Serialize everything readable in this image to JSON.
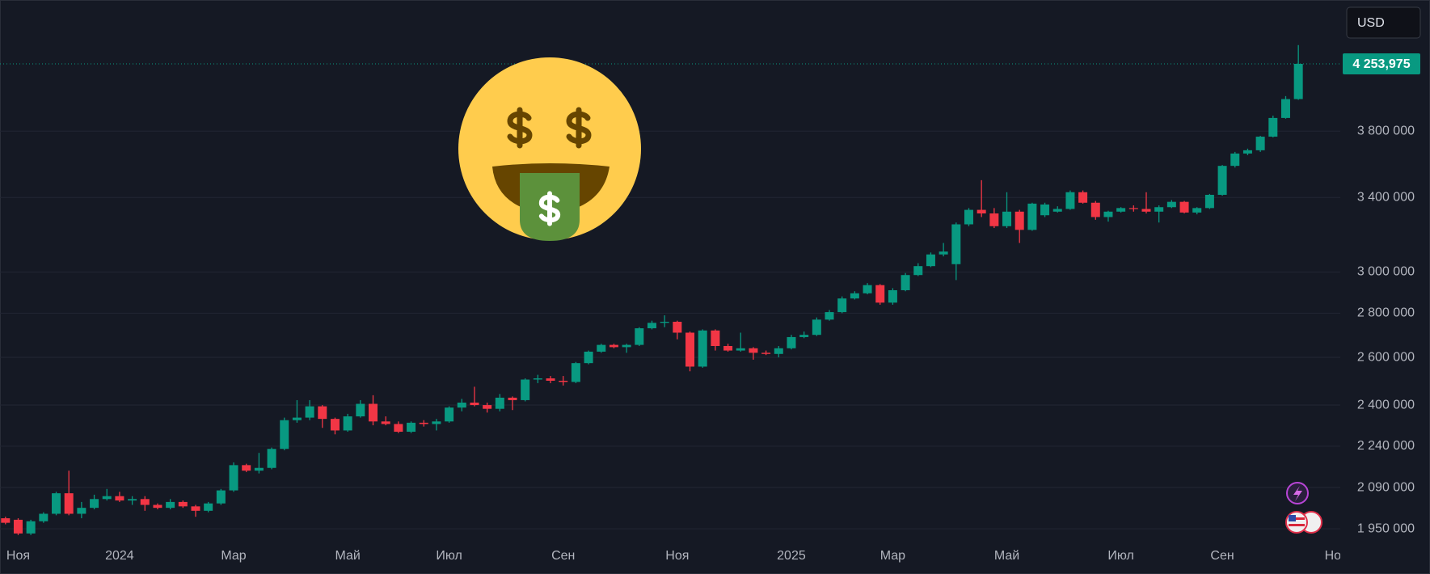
{
  "chart_data": {
    "type": "candlestick",
    "currency": "USD",
    "log_scale": true,
    "grid": true,
    "up_color": "#089981",
    "down_color": "#f23645",
    "ylim": [
      1906000,
      4735000
    ],
    "yticks": [
      {
        "value": 1950000,
        "label": "1 950 000"
      },
      {
        "value": 2090000,
        "label": "2 090 000"
      },
      {
        "value": 2240000,
        "label": "2 240 000"
      },
      {
        "value": 2400000,
        "label": "2 400 000"
      },
      {
        "value": 2600000,
        "label": "2 600 000"
      },
      {
        "value": 2800000,
        "label": "2 800 000"
      },
      {
        "value": 3000000,
        "label": "3 000 000"
      },
      {
        "value": 3400000,
        "label": "3 400 000"
      },
      {
        "value": 3800000,
        "label": "3 800 000"
      }
    ],
    "price_line": {
      "value": 4253975,
      "label": "4 253,975",
      "color": "#089981"
    },
    "categories": [
      null,
      "Ноя",
      null,
      null,
      null,
      null,
      null,
      null,
      null,
      "2024",
      null,
      null,
      null,
      null,
      null,
      null,
      null,
      null,
      "Мар",
      null,
      null,
      null,
      null,
      null,
      null,
      null,
      null,
      "Май",
      null,
      null,
      null,
      null,
      null,
      null,
      null,
      "Июл",
      null,
      null,
      null,
      null,
      null,
      null,
      null,
      null,
      "Сен",
      null,
      null,
      null,
      null,
      null,
      null,
      null,
      null,
      "Ноя",
      null,
      null,
      null,
      null,
      null,
      null,
      null,
      null,
      "2025",
      null,
      null,
      null,
      null,
      null,
      null,
      null,
      "Мар",
      null,
      null,
      null,
      null,
      null,
      null,
      null,
      null,
      "Май",
      null,
      null,
      null,
      null,
      null,
      null,
      null,
      null,
      "Июл",
      null,
      null,
      null,
      null,
      null,
      null,
      null,
      "Сен",
      null,
      null,
      null,
      null,
      null,
      null,
      null,
      null,
      "Ноя"
    ],
    "open": [
      1985000,
      1980000,
      1935000,
      1975000,
      2000000,
      2070000,
      2000000,
      2020000,
      2050000,
      2060000,
      2045000,
      2050000,
      2030000,
      2020000,
      2040000,
      2025000,
      2010000,
      2035000,
      2080000,
      2170000,
      2150000,
      2160000,
      2230000,
      2340000,
      2350000,
      2395000,
      2345000,
      2300000,
      2355000,
      2405000,
      2335000,
      2325000,
      2295000,
      2330000,
      2325000,
      2335000,
      2390000,
      2410000,
      2400000,
      2385000,
      2430000,
      2420000,
      2505000,
      2510000,
      2500000,
      2495000,
      2575000,
      2625000,
      2655000,
      2645000,
      2655000,
      2730000,
      2755000,
      2760000,
      2710000,
      2560000,
      2720000,
      2650000,
      2630000,
      2640000,
      2620000,
      2615000,
      2640000,
      2690000,
      2700000,
      2770000,
      2805000,
      2870000,
      2895000,
      2935000,
      2850000,
      2910000,
      2985000,
      3030000,
      3090000,
      3040000,
      3250000,
      3330000,
      3310000,
      3240000,
      3320000,
      3220000,
      3300000,
      3320000,
      3335000,
      3430000,
      3370000,
      3290000,
      3320000,
      3340000,
      3335000,
      3320000,
      3345000,
      3375000,
      3315000,
      3340000,
      3415000,
      3585000,
      3660000,
      3680000,
      3765000,
      3885000,
      4010000,
      null,
      null,
      null
    ],
    "high": [
      1990000,
      1985000,
      1980000,
      2005000,
      2075000,
      2150000,
      2040000,
      2065000,
      2085000,
      2075000,
      2060000,
      2060000,
      2035000,
      2050000,
      2045000,
      2030000,
      2040000,
      2085000,
      2180000,
      2175000,
      2215000,
      2235000,
      2350000,
      2420000,
      2420000,
      2400000,
      2350000,
      2365000,
      2420000,
      2440000,
      2355000,
      2335000,
      2335000,
      2340000,
      2345000,
      2395000,
      2425000,
      2475000,
      2410000,
      2445000,
      2435000,
      2510000,
      2525000,
      2520000,
      2520000,
      2580000,
      2630000,
      2660000,
      2660000,
      2660000,
      2735000,
      2765000,
      2790000,
      2765000,
      2715000,
      2725000,
      2725000,
      2660000,
      2710000,
      2645000,
      2630000,
      2650000,
      2700000,
      2715000,
      2780000,
      2815000,
      2880000,
      2905000,
      2945000,
      2940000,
      2920000,
      2995000,
      3045000,
      3100000,
      3150000,
      3260000,
      3340000,
      3500000,
      3340000,
      3430000,
      3330000,
      3370000,
      3370000,
      3350000,
      3440000,
      3440000,
      3380000,
      3325000,
      3345000,
      3355000,
      3430000,
      3355000,
      3385000,
      3380000,
      3345000,
      3420000,
      3590000,
      3670000,
      3690000,
      3770000,
      3900000,
      4030000,
      4390000,
      null,
      null,
      null
    ],
    "low": [
      1965000,
      1930000,
      1930000,
      1970000,
      1995000,
      1995000,
      1985000,
      2015000,
      2045000,
      2040000,
      2030000,
      2010000,
      2015000,
      2015000,
      2020000,
      1990000,
      2005000,
      2030000,
      2075000,
      2145000,
      2140000,
      2155000,
      2225000,
      2330000,
      2340000,
      2310000,
      2285000,
      2295000,
      2350000,
      2320000,
      2320000,
      2290000,
      2290000,
      2315000,
      2300000,
      2330000,
      2375000,
      2395000,
      2370000,
      2375000,
      2380000,
      2415000,
      2490000,
      2490000,
      2480000,
      2490000,
      2570000,
      2620000,
      2640000,
      2620000,
      2650000,
      2725000,
      2735000,
      2680000,
      2540000,
      2555000,
      2630000,
      2625000,
      2625000,
      2590000,
      2610000,
      2600000,
      2635000,
      2685000,
      2695000,
      2765000,
      2800000,
      2865000,
      2890000,
      2840000,
      2840000,
      2905000,
      2980000,
      3025000,
      3080000,
      2960000,
      3240000,
      3290000,
      3230000,
      3230000,
      3150000,
      3215000,
      3290000,
      3315000,
      3330000,
      3365000,
      3275000,
      3265000,
      3315000,
      3320000,
      3310000,
      3260000,
      3340000,
      3310000,
      3305000,
      3335000,
      3410000,
      3575000,
      3650000,
      3670000,
      3760000,
      3880000,
      4005000,
      null,
      null,
      null
    ],
    "close": [
      1970000,
      1935000,
      1975000,
      2000000,
      2070000,
      2000000,
      2020000,
      2050000,
      2060000,
      2045000,
      2050000,
      2030000,
      2020000,
      2040000,
      2025000,
      2010000,
      2035000,
      2080000,
      2170000,
      2150000,
      2160000,
      2230000,
      2340000,
      2350000,
      2395000,
      2345000,
      2300000,
      2355000,
      2405000,
      2335000,
      2325000,
      2295000,
      2330000,
      2325000,
      2335000,
      2390000,
      2410000,
      2400000,
      2385000,
      2430000,
      2420000,
      2505000,
      2510000,
      2500000,
      2495000,
      2575000,
      2625000,
      2655000,
      2645000,
      2655000,
      2730000,
      2755000,
      2760000,
      2710000,
      2560000,
      2720000,
      2650000,
      2630000,
      2640000,
      2620000,
      2615000,
      2640000,
      2690000,
      2700000,
      2770000,
      2805000,
      2870000,
      2895000,
      2935000,
      2850000,
      2910000,
      2985000,
      3030000,
      3090000,
      3105000,
      3250000,
      3330000,
      3310000,
      3240000,
      3320000,
      3220000,
      3365000,
      3360000,
      3335000,
      3430000,
      3370000,
      3290000,
      3320000,
      3340000,
      3335000,
      3320000,
      3345000,
      3375000,
      3315000,
      3340000,
      3415000,
      3585000,
      3660000,
      3680000,
      3765000,
      3885000,
      4010000,
      4253975,
      null,
      null,
      null
    ]
  }
}
